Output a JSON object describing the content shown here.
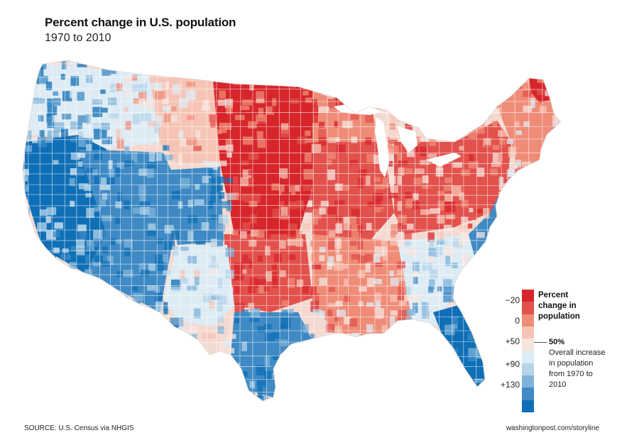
{
  "title": "Percent change in U.S. population",
  "subtitle": "1970 to 2010",
  "source": "SOURCE: U.S. Census via NHGIS",
  "credit": "washingtonpost.com/storyline",
  "legend": {
    "title": "Percent change in population",
    "ticks": [
      "−20",
      "0",
      "+50",
      "+90",
      "+130"
    ],
    "marker_label": "50%",
    "marker_desc": "Overall increase in population from 1970 to 2010",
    "colors": [
      "#d7262b",
      "#e2514c",
      "#ef8c78",
      "#f6c4b5",
      "#f7e4dd",
      "#ddebf4",
      "#b5d4ea",
      "#7fb3d9",
      "#3f8ac4",
      "#0f6fb6"
    ]
  },
  "palette": {
    "strong_red": "#d7262b",
    "red": "#e2514c",
    "salmon": "#ef8c78",
    "pink": "#f6c4b5",
    "pale": "#f7e4dd",
    "pale_blue": "#ddebf4",
    "light_blue": "#b5d4ea",
    "blue": "#3f8ac4",
    "strong_blue": "#0f6fb6"
  }
}
